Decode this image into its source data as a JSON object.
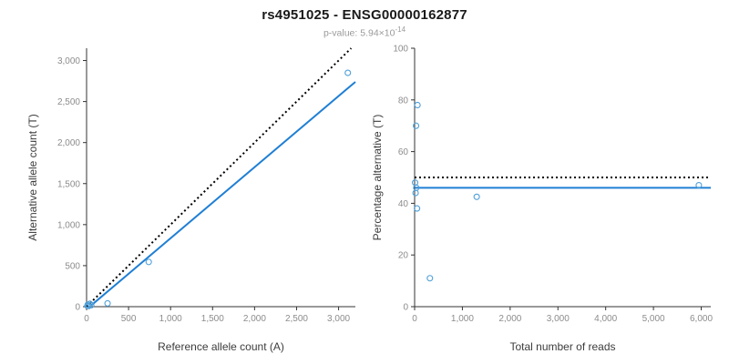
{
  "header": {
    "title": "rs4951025 - ENSG00000162877",
    "pvalue_prefix": "p-value: 5.94×10",
    "pvalue_exponent": "-14"
  },
  "colors": {
    "point": "#4f9fd8",
    "fit_line": "#1f7fd4",
    "identity_line": "#000000",
    "axis": "#333333",
    "tick_label": "#8c8c8c",
    "axis_label": "#3c3c3c"
  },
  "chart_data": [
    {
      "type": "scatter",
      "title": "rs4951025 - ENSG00000162877",
      "xlabel": "Reference allele count (A)",
      "ylabel": "Alternative allele count (T)",
      "xlim": [
        0,
        3200
      ],
      "ylim": [
        0,
        3150
      ],
      "grid": false,
      "legend": "none",
      "xticks": [
        0,
        500,
        1000,
        1500,
        2000,
        2500,
        3000
      ],
      "xtick_labels": [
        "0",
        "500",
        "1,000",
        "1,500",
        "2,000",
        "2,500",
        "3,000"
      ],
      "yticks": [
        0,
        500,
        1000,
        1500,
        2000,
        2500,
        3000
      ],
      "ytick_labels": [
        "0",
        "500",
        "1,000",
        "1,500",
        "2,000",
        "2,500",
        "3,000"
      ],
      "points": [
        [
          10,
          10
        ],
        [
          15,
          25
        ],
        [
          25,
          8
        ],
        [
          40,
          35
        ],
        [
          55,
          18
        ],
        [
          250,
          40
        ],
        [
          740,
          545
        ],
        [
          3110,
          2850
        ]
      ],
      "lines": [
        {
          "name": "identity-line",
          "x": [
            0,
            3150
          ],
          "y": [
            0,
            3150
          ],
          "style": "dotted",
          "color": "#000000",
          "width": 2
        },
        {
          "name": "fit-line",
          "x": [
            60,
            3200
          ],
          "y": [
            20,
            2740
          ],
          "style": "solid",
          "color": "#1f7fd4",
          "width": 2
        }
      ]
    },
    {
      "type": "scatter",
      "title": "rs4951025 - ENSG00000162877",
      "xlabel": "Total number of reads",
      "ylabel": "Percentage alternative (T)",
      "xlim": [
        0,
        6200
      ],
      "ylim": [
        0,
        100
      ],
      "grid": false,
      "legend": "none",
      "xticks": [
        0,
        1000,
        2000,
        3000,
        4000,
        5000,
        6000
      ],
      "xtick_labels": [
        "0",
        "1,000",
        "2,000",
        "3,000",
        "4,000",
        "5,000",
        "6,000"
      ],
      "yticks": [
        0,
        20,
        40,
        60,
        80,
        100
      ],
      "ytick_labels": [
        "0",
        "20",
        "40",
        "60",
        "80",
        "100"
      ],
      "points": [
        [
          60,
          78
        ],
        [
          30,
          70
        ],
        [
          10,
          48
        ],
        [
          35,
          46
        ],
        [
          20,
          44
        ],
        [
          50,
          38
        ],
        [
          320,
          11
        ],
        [
          1300,
          42.5
        ],
        [
          5950,
          47
        ]
      ],
      "lines": [
        {
          "name": "expected-line",
          "x": [
            0,
            6200
          ],
          "y": [
            50,
            50
          ],
          "style": "dotted",
          "color": "#000000",
          "width": 2
        },
        {
          "name": "fit-line",
          "x": [
            0,
            6200
          ],
          "y": [
            46,
            46
          ],
          "style": "solid",
          "color": "#1f7fd4",
          "width": 2
        }
      ]
    }
  ]
}
